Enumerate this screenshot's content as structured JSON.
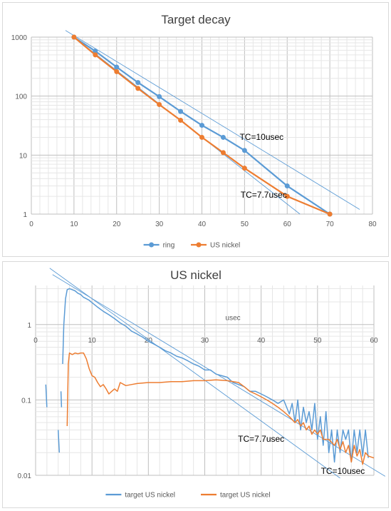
{
  "chart_data": [
    {
      "type": "line",
      "title": "Target decay",
      "xlabel": "",
      "ylabel": "",
      "xlim": [
        0,
        80
      ],
      "ylim": [
        1,
        1000
      ],
      "yscale": "log",
      "xticks": [
        "0",
        "10",
        "20",
        "30",
        "40",
        "50",
        "60",
        "70",
        "80"
      ],
      "yticks": [
        "1",
        "10",
        "100",
        "1000"
      ],
      "grid": true,
      "legend": "bottom",
      "series": [
        {
          "name": "ring",
          "color": "#5b9bd5",
          "markers": true,
          "x": [
            10,
            15,
            20,
            25,
            30,
            35,
            40,
            45,
            50,
            60,
            70
          ],
          "y": [
            1000,
            580,
            310,
            170,
            98,
            55,
            32,
            20,
            12,
            3,
            1
          ]
        },
        {
          "name": "US nickel",
          "color": "#ed7d31",
          "markers": true,
          "x": [
            10,
            15,
            20,
            25,
            30,
            35,
            40,
            45,
            50,
            60,
            70
          ],
          "y": [
            1000,
            500,
            260,
            135,
            72,
            39,
            20,
            11,
            6,
            2,
            1
          ]
        }
      ],
      "trendlines": [
        {
          "color": "#5b9bd5",
          "x": [
            8,
            77
          ],
          "y": [
            1300,
            1.2
          ]
        },
        {
          "color": "#5b9bd5",
          "x": [
            10,
            63
          ],
          "y": [
            1000,
            1.0
          ]
        }
      ],
      "annotations": [
        {
          "text": "TC=10usec",
          "x": 54,
          "y": 18
        },
        {
          "text": "TC=7.7usec",
          "x": 54.5,
          "y": 1.9
        }
      ]
    },
    {
      "type": "line",
      "title": "US nickel",
      "xlabel": "usec",
      "ylabel": "",
      "xlim": [
        0,
        60
      ],
      "ylim": [
        0.01,
        3.3
      ],
      "yscale": "log",
      "xticks": [
        "0",
        "10",
        "20",
        "30",
        "40",
        "50",
        "60"
      ],
      "yticks": [
        "0.01",
        "0.1",
        "1"
      ],
      "grid": true,
      "legend": "bottom",
      "series": [
        {
          "name": "target US nickel",
          "color": "#5b9bd5",
          "segments": [
            {
              "x": [
                1.8,
                2.0
              ],
              "y": [
                0.16,
                0.08
              ]
            },
            {
              "x": [
                4.0,
                4.2
              ],
              "y": [
                0.04,
                0.02
              ]
            },
            {
              "x": [
                4.5,
                4.6
              ],
              "y": [
                0.13,
                0.08
              ]
            },
            {
              "x": [
                4.8,
                5.0,
                5.3,
                5.6,
                6.0,
                6.5,
                7.0,
                7.5,
                8.0,
                8.5,
                9.0,
                9.5,
                10.0,
                11.0,
                12.0,
                13.0,
                14.0,
                15.0,
                16.0,
                17.0,
                18.0,
                19.0,
                20.0,
                21.0,
                22.0,
                23.0,
                24.0,
                25.0,
                26.0,
                27.0,
                28.0,
                29.0,
                30.0,
                31.0,
                32.0,
                33.0,
                34.0,
                35.0,
                36.0,
                37.0,
                38.0,
                39.0,
                40.0,
                41.0,
                42.0,
                43.0,
                44.0,
                45.0,
                45.5,
                46.0,
                46.5,
                47.0,
                47.5,
                48.0,
                48.5,
                49.0,
                49.5,
                50.0,
                50.5,
                51.0,
                51.5,
                52.0,
                52.5,
                53.0,
                53.5,
                54.0,
                54.5,
                55.0,
                55.5,
                56.0,
                56.5,
                57.0,
                57.5,
                58.0,
                58.5,
                59.0
              ],
              "y": [
                0.3,
                1.0,
                2.2,
                2.9,
                3.0,
                2.9,
                2.8,
                2.6,
                2.5,
                2.3,
                2.2,
                2.1,
                1.95,
                1.7,
                1.5,
                1.35,
                1.2,
                1.05,
                0.95,
                0.82,
                0.75,
                0.68,
                0.6,
                0.55,
                0.5,
                0.45,
                0.42,
                0.38,
                0.36,
                0.33,
                0.3,
                0.28,
                0.25,
                0.25,
                0.22,
                0.21,
                0.2,
                0.17,
                0.16,
                0.15,
                0.13,
                0.13,
                0.12,
                0.11,
                0.1,
                0.09,
                0.1,
                0.065,
                0.09,
                0.05,
                0.1,
                0.04,
                0.08,
                0.05,
                0.07,
                0.04,
                0.09,
                0.03,
                0.06,
                0.025,
                0.07,
                0.02,
                0.04,
                0.015,
                0.04,
                0.02,
                0.04,
                0.03,
                0.04,
                0.015,
                0.04,
                0.02,
                0.04,
                0.018,
                0.04,
                0.017
              ]
            }
          ]
        },
        {
          "name": "target US nickel",
          "color": "#ed7d31",
          "segments": [
            {
              "x": [
                5.6,
                5.8,
                6.0,
                6.5,
                7.0,
                7.5,
                8.0,
                8.5,
                9.0,
                9.5,
                10.0,
                10.5,
                11.0,
                11.5,
                12.0,
                12.5,
                13.0,
                13.5,
                14.0,
                14.5,
                15.0,
                16.0,
                17.0,
                18.0,
                20.0,
                22.0,
                24.0,
                26.0,
                28.0,
                30.0,
                32.0,
                34.0,
                36.0,
                37.0,
                38.0,
                39.0,
                40.0,
                41.0,
                42.0,
                43.0,
                44.0,
                45.0,
                46.0,
                46.5,
                47.0,
                47.5,
                48.0,
                48.5,
                49.0,
                49.5,
                50.0,
                50.5,
                51.0,
                52.0,
                53.0,
                53.5,
                54.0,
                54.5,
                55.0,
                55.5,
                56.0,
                56.5,
                57.0,
                57.5,
                58.0,
                58.5,
                59.0,
                60.0
              ],
              "y": [
                0.045,
                0.3,
                0.42,
                0.4,
                0.42,
                0.41,
                0.42,
                0.42,
                0.35,
                0.26,
                0.21,
                0.2,
                0.17,
                0.15,
                0.16,
                0.14,
                0.12,
                0.13,
                0.14,
                0.13,
                0.17,
                0.155,
                0.16,
                0.165,
                0.17,
                0.17,
                0.175,
                0.175,
                0.18,
                0.18,
                0.185,
                0.18,
                0.17,
                0.15,
                0.13,
                0.12,
                0.11,
                0.1,
                0.09,
                0.08,
                0.07,
                0.06,
                0.05,
                0.055,
                0.045,
                0.05,
                0.04,
                0.045,
                0.035,
                0.04,
                0.035,
                0.04,
                0.03,
                0.03,
                0.025,
                0.03,
                0.022,
                0.028,
                0.02,
                0.025,
                0.015,
                0.025,
                0.018,
                0.022,
                0.014,
                0.02,
                0.018,
                0.017
              ]
            }
          ]
        }
      ],
      "trendlines": [
        {
          "color": "#5b9bd5",
          "x": [
            3,
            62
          ],
          "y": [
            4.6,
            0.0097
          ]
        },
        {
          "color": "#5b9bd5",
          "x": [
            2.5,
            54
          ],
          "y": [
            5.6,
            0.0092
          ]
        }
      ],
      "annotations": [
        {
          "text": "TC=7.7usec",
          "x": 40,
          "y": 0.028
        },
        {
          "text": "TC=10usec",
          "x": 54.5,
          "y": 0.0105
        }
      ]
    }
  ]
}
